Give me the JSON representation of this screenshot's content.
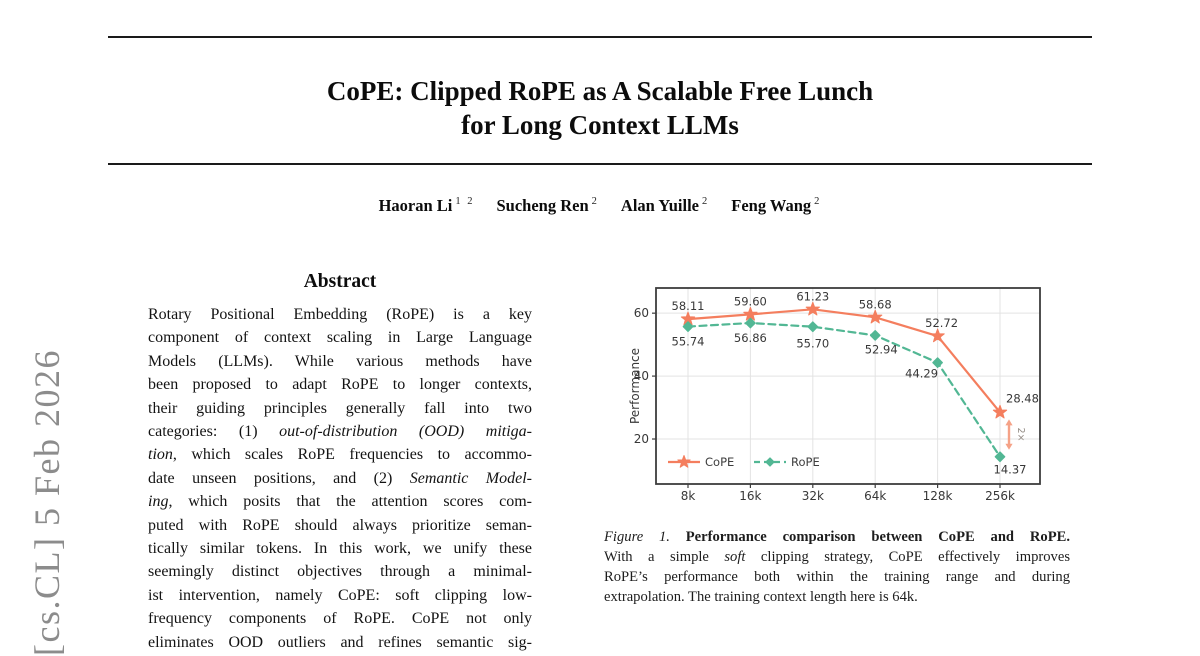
{
  "arxiv_stamp": "[cs.CL] 5 Feb 2026",
  "paper": {
    "title_line1": "CoPE: Clipped RoPE as A Scalable Free Lunch",
    "title_line2": "for Long Context LLMs",
    "authors": [
      {
        "name": "Haoran Li",
        "sup": "1 2"
      },
      {
        "name": "Sucheng Ren",
        "sup": "2"
      },
      {
        "name": "Alan Yuille",
        "sup": "2"
      },
      {
        "name": "Feng Wang",
        "sup": "2"
      }
    ],
    "abstract_heading": "Abstract",
    "abstract_lines": [
      [
        {
          "t": "Rotary Positional Embedding (RoPE) is a key"
        }
      ],
      [
        {
          "t": "component of context scaling in Large Language"
        }
      ],
      [
        {
          "t": "Models (LLMs). While various methods have"
        }
      ],
      [
        {
          "t": "been proposed to adapt RoPE to longer contexts,"
        }
      ],
      [
        {
          "t": "their guiding principles generally fall into two"
        }
      ],
      [
        {
          "t": "categories: (1) "
        },
        {
          "t": "out-of-distribution (OOD) mitiga-",
          "i": true
        }
      ],
      [
        {
          "t": "tion",
          "i": true
        },
        {
          "t": ", which scales RoPE frequencies to accommo-"
        }
      ],
      [
        {
          "t": "date unseen positions, and (2) "
        },
        {
          "t": "Semantic Model-",
          "i": true
        }
      ],
      [
        {
          "t": "ing",
          "i": true
        },
        {
          "t": ", which posits that the attention scores com-"
        }
      ],
      [
        {
          "t": "puted with RoPE should always prioritize seman-"
        }
      ],
      [
        {
          "t": "tically similar tokens. In this work, we unify these"
        }
      ],
      [
        {
          "t": "seemingly distinct objectives through a minimal-"
        }
      ],
      [
        {
          "t": "ist intervention, namely CoPE: soft clipping low-"
        }
      ],
      [
        {
          "t": "frequency components of RoPE. CoPE not only"
        }
      ],
      [
        {
          "t": "eliminates OOD outliers and refines semantic sig-"
        }
      ]
    ]
  },
  "figure": {
    "caption_lines": [
      [
        {
          "t": "Figure 1.",
          "i": true
        },
        {
          "t": " "
        },
        {
          "t": "Performance comparison between CoPE and RoPE.",
          "b": true
        }
      ],
      [
        {
          "t": "With a simple "
        },
        {
          "t": "soft",
          "i": true
        },
        {
          "t": " clipping strategy, CoPE effectively improves"
        }
      ],
      [
        {
          "t": "RoPE’s performance both within the training range and during"
        }
      ],
      [
        {
          "t": "extrapolation. The training context length here is 64k."
        }
      ]
    ]
  },
  "chart_data": {
    "type": "line",
    "categories": [
      "8k",
      "16k",
      "32k",
      "64k",
      "128k",
      "256k"
    ],
    "series": [
      {
        "name": "CoPE",
        "values": [
          58.11,
          59.6,
          61.23,
          58.68,
          52.72,
          28.48
        ],
        "labels": [
          "58.11",
          "59.60",
          "61.23",
          "58.68",
          "52.72",
          "28.48"
        ],
        "color": "#F47E5E",
        "marker": "star",
        "style": "solid"
      },
      {
        "name": "RoPE",
        "values": [
          55.74,
          56.86,
          55.7,
          52.94,
          44.29,
          14.37
        ],
        "labels": [
          "55.74",
          "56.86",
          "55.70",
          "52.94",
          "44.29",
          "14.37"
        ],
        "color": "#52B794",
        "marker": "diamond",
        "style": "dashed"
      }
    ],
    "title": "",
    "xlabel": "",
    "ylabel": "Performance",
    "yticks": [
      20,
      40,
      60
    ],
    "ylim": [
      5.7,
      68.0
    ],
    "grid": true,
    "legend_position": "lower left",
    "annotation": {
      "text": "2×",
      "at_category": "256k",
      "between": [
        28.48,
        14.37
      ],
      "arrow_color": "#F5A287"
    }
  }
}
